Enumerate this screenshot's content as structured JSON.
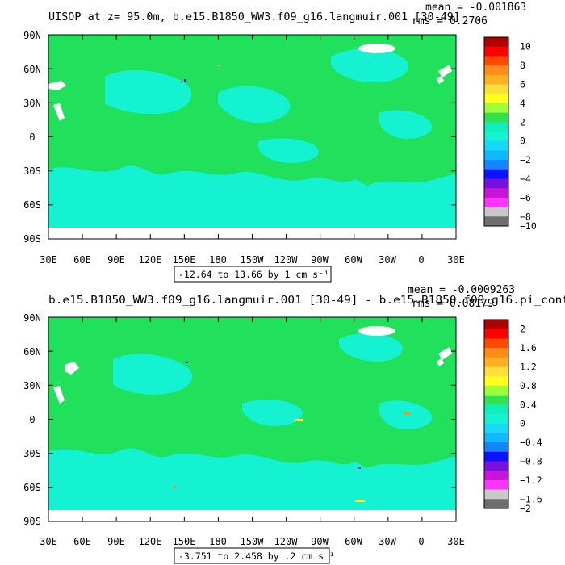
{
  "colors": {
    "ocean_main": "#21e05c",
    "ocean_alt": "#14f2d2",
    "land": "#ffffff",
    "frame": "#000000"
  },
  "chart_data": [
    {
      "type": "heatmap",
      "title": "UISOP at z=  95.0m, b.e15.B1850_WW3.f09_g16.langmuir.001 [30-49]",
      "stats_mean": "mean = -0.001863",
      "stats_rms": "rms = 0.2706",
      "xticks": [
        "30E",
        "60E",
        "90E",
        "120E",
        "150E",
        "180",
        "150W",
        "120W",
        "90W",
        "60W",
        "30W",
        "0",
        "30E"
      ],
      "yticks": [
        "90N",
        "60N",
        "30N",
        "0",
        "30S",
        "60S",
        "90S"
      ],
      "contour_info": "-12.64 to 13.66 by 1 cm s⁻¹",
      "colorbar": {
        "labels": [
          "10",
          "8",
          "6",
          "4",
          "2",
          "0",
          "−2",
          "−4",
          "−6",
          "−8",
          "−10"
        ],
        "colors": [
          "#b00000",
          "#ff0000",
          "#ff4a00",
          "#ff8c1a",
          "#ffb020",
          "#ffdf3a",
          "#ffff20",
          "#9cff3a",
          "#33e050",
          "#10eeba",
          "#14f2d2",
          "#18d8f8",
          "#10b8ff",
          "#1484ff",
          "#0a14ff",
          "#7a10e0",
          "#c814d6",
          "#ff33ff",
          "#c8c8c8",
          "#6e6e6e"
        ]
      }
    },
    {
      "type": "heatmap",
      "title": "b.e15.B1850_WW3.f09_g16.langmuir.001 [30-49] - b.e15.B1850.f09_g16.pi_cont",
      "stats_mean": "mean = -0.0009263",
      "stats_rms": "rms = 0.08179",
      "xticks": [
        "30E",
        "60E",
        "90E",
        "120E",
        "150E",
        "180",
        "150W",
        "120W",
        "90W",
        "60W",
        "30W",
        "0",
        "30E"
      ],
      "yticks": [
        "90N",
        "60N",
        "30N",
        "0",
        "30S",
        "60S",
        "90S"
      ],
      "contour_info": "-3.751 to 2.458 by .2 cm s⁻¹",
      "colorbar": {
        "labels": [
          "2",
          "1.6",
          "1.2",
          "0.8",
          "0.4",
          "0",
          "−0.4",
          "−0.8",
          "−1.2",
          "−1.6",
          "−2"
        ],
        "colors": [
          "#b00000",
          "#ff0000",
          "#ff4a00",
          "#ff8c1a",
          "#ffb020",
          "#ffdf3a",
          "#ffff20",
          "#9cff3a",
          "#33e050",
          "#10eeba",
          "#14f2d2",
          "#18d8f8",
          "#10b8ff",
          "#1484ff",
          "#0a14ff",
          "#7a10e0",
          "#c814d6",
          "#ff33ff",
          "#c8c8c8",
          "#6e6e6e"
        ]
      }
    }
  ]
}
